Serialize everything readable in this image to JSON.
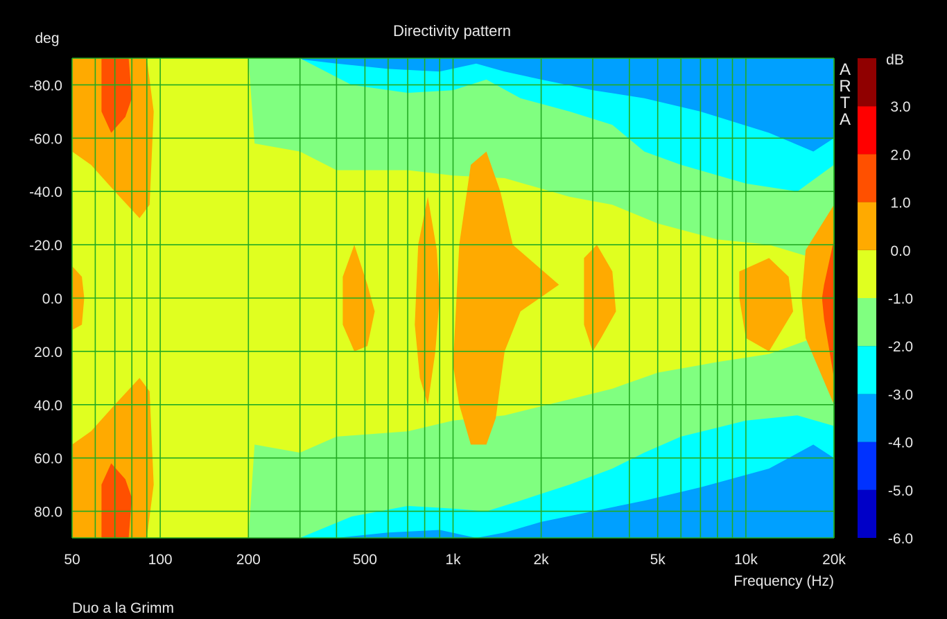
{
  "chart_data": {
    "type": "heatmap",
    "title": "Directivity pattern",
    "xlabel": "Frequency (Hz)",
    "ylabel": "deg",
    "x_scale": "log",
    "xlim": [
      50,
      20000
    ],
    "ylim": [
      -90,
      90
    ],
    "x_ticks": [
      50,
      100,
      200,
      500,
      1000,
      2000,
      5000,
      10000,
      20000
    ],
    "x_tick_labels": [
      "50",
      "100",
      "200",
      "500",
      "1k",
      "2k",
      "5k",
      "10k",
      "20k"
    ],
    "y_ticks": [
      -80,
      -60,
      -40,
      -20,
      0,
      20,
      40,
      60,
      80
    ],
    "y_tick_labels": [
      "-80.0",
      "-60.0",
      "-40.0",
      "-20.0",
      "0.0",
      "20.0",
      "40.0",
      "60.0",
      "80.0"
    ],
    "grid": true,
    "colorbar": {
      "label": "dB",
      "levels": [
        -6,
        -5,
        -4,
        -3,
        -2,
        -1,
        0,
        1,
        2,
        3,
        4
      ],
      "tick_labels": [
        "-6.0",
        "-5.0",
        "-4.0",
        "-3.0",
        "-2.0",
        "-1.0",
        "0.0",
        "1.0",
        "2.0",
        "3.0"
      ],
      "colors": [
        "#0000c8",
        "#0032ff",
        "#00a0ff",
        "#00ffff",
        "#80ff80",
        "#e0ff20",
        "#ffaa00",
        "#ff5000",
        "#ff0000",
        "#900000"
      ]
    },
    "plot_background_color": "#000080",
    "grid_color": "#22aa22",
    "brand_letters": [
      "A",
      "R",
      "T",
      "A"
    ],
    "footer": "Duo a la Grimm",
    "regions": [
      {
        "level": "-4.0 to -3.0",
        "points": [
          [
            50,
            90
          ],
          [
            20000,
            90
          ],
          [
            20000,
            -90
          ],
          [
            50,
            -90
          ]
        ]
      },
      {
        "level": "-3.0 to -2.0",
        "points": [
          [
            200,
            -90
          ],
          [
            280,
            -90
          ],
          [
            400,
            -88
          ],
          [
            600,
            -86
          ],
          [
            900,
            -85
          ],
          [
            1200,
            -88
          ],
          [
            1500,
            -85
          ],
          [
            2000,
            -82
          ],
          [
            3000,
            -78
          ],
          [
            4500,
            -75
          ],
          [
            7000,
            -70
          ],
          [
            12000,
            -62
          ],
          [
            17000,
            -55
          ],
          [
            20000,
            -60
          ],
          [
            20000,
            60
          ],
          [
            17000,
            55
          ],
          [
            12000,
            64
          ],
          [
            7000,
            71
          ],
          [
            4500,
            76
          ],
          [
            3000,
            80
          ],
          [
            2000,
            84
          ],
          [
            1500,
            88
          ],
          [
            1200,
            90
          ],
          [
            900,
            87
          ],
          [
            600,
            88
          ],
          [
            400,
            90
          ],
          [
            280,
            90
          ],
          [
            200,
            90
          ],
          [
            200,
            -90
          ]
        ]
      },
      {
        "level": "-2.0 to -1.0",
        "points": [
          [
            200,
            -90
          ],
          [
            300,
            -90
          ],
          [
            450,
            -80
          ],
          [
            700,
            -77
          ],
          [
            1000,
            -78
          ],
          [
            1300,
            -82
          ],
          [
            1700,
            -75
          ],
          [
            2500,
            -70
          ],
          [
            3500,
            -65
          ],
          [
            4500,
            -55
          ],
          [
            6000,
            -50
          ],
          [
            10000,
            -43
          ],
          [
            15000,
            -40
          ],
          [
            20000,
            -50
          ],
          [
            20000,
            48
          ],
          [
            15000,
            44
          ],
          [
            10000,
            46
          ],
          [
            6000,
            52
          ],
          [
            4500,
            58
          ],
          [
            3500,
            64
          ],
          [
            2500,
            70
          ],
          [
            1700,
            76
          ],
          [
            1300,
            80
          ],
          [
            1000,
            79
          ],
          [
            700,
            78
          ],
          [
            450,
            82
          ],
          [
            300,
            90
          ],
          [
            200,
            90
          ],
          [
            200,
            -90
          ]
        ]
      },
      {
        "level": "-1.0 to 0.0",
        "points": [
          [
            50,
            -90
          ],
          [
            100,
            -90
          ],
          [
            200,
            -90
          ],
          [
            210,
            -58
          ],
          [
            300,
            -55
          ],
          [
            400,
            -48
          ],
          [
            700,
            -48
          ],
          [
            1000,
            -46
          ],
          [
            1500,
            -45
          ],
          [
            2500,
            -38
          ],
          [
            3500,
            -35
          ],
          [
            5000,
            -28
          ],
          [
            8000,
            -22
          ],
          [
            12000,
            -20
          ],
          [
            17000,
            -15
          ],
          [
            20000,
            -20
          ],
          [
            20000,
            22
          ],
          [
            17000,
            15
          ],
          [
            12000,
            21
          ],
          [
            8000,
            24
          ],
          [
            5000,
            28
          ],
          [
            3500,
            34
          ],
          [
            2500,
            38
          ],
          [
            1500,
            44
          ],
          [
            1000,
            46
          ],
          [
            700,
            50
          ],
          [
            400,
            52
          ],
          [
            300,
            58
          ],
          [
            210,
            55
          ],
          [
            200,
            90
          ],
          [
            100,
            90
          ],
          [
            50,
            90
          ],
          [
            50,
            -90
          ]
        ]
      },
      {
        "level": "0.0 to 1.0",
        "points": [
          [
            50,
            -90
          ],
          [
            90,
            -90
          ],
          [
            95,
            -70
          ],
          [
            92,
            -35
          ],
          [
            85,
            -30
          ],
          [
            70,
            -40
          ],
          [
            58,
            -50
          ],
          [
            50,
            -55
          ],
          [
            50,
            -90
          ]
        ]
      },
      {
        "level": "0.0 to 1.0",
        "points": [
          [
            50,
            90
          ],
          [
            90,
            90
          ],
          [
            95,
            70
          ],
          [
            92,
            35
          ],
          [
            85,
            30
          ],
          [
            70,
            40
          ],
          [
            58,
            50
          ],
          [
            50,
            55
          ],
          [
            50,
            90
          ]
        ]
      },
      {
        "level": "0.0 to 1.0",
        "points": [
          [
            50,
            -12
          ],
          [
            54,
            -8
          ],
          [
            55,
            0
          ],
          [
            54,
            10
          ],
          [
            50,
            12
          ],
          [
            50,
            -12
          ]
        ]
      },
      {
        "level": "0.0 to 1.0",
        "points": [
          [
            420,
            -8
          ],
          [
            460,
            -20
          ],
          [
            510,
            -5
          ],
          [
            540,
            5
          ],
          [
            510,
            18
          ],
          [
            460,
            20
          ],
          [
            420,
            10
          ],
          [
            420,
            -8
          ]
        ]
      },
      {
        "level": "0.0 to 1.0",
        "points": [
          [
            760,
            -20
          ],
          [
            820,
            -38
          ],
          [
            880,
            -18
          ],
          [
            900,
            0
          ],
          [
            870,
            20
          ],
          [
            820,
            40
          ],
          [
            770,
            30
          ],
          [
            740,
            10
          ],
          [
            760,
            -20
          ]
        ]
      },
      {
        "level": "0.0 to 1.0",
        "points": [
          [
            1050,
            -20
          ],
          [
            1150,
            -50
          ],
          [
            1300,
            -55
          ],
          [
            1450,
            -40
          ],
          [
            1600,
            -20
          ],
          [
            2300,
            -5
          ],
          [
            1700,
            5
          ],
          [
            1500,
            20
          ],
          [
            1400,
            45
          ],
          [
            1300,
            55
          ],
          [
            1150,
            55
          ],
          [
            1050,
            40
          ],
          [
            1000,
            25
          ],
          [
            1050,
            -20
          ]
        ]
      },
      {
        "level": "0.0 to 1.0",
        "points": [
          [
            2800,
            -15
          ],
          [
            3100,
            -20
          ],
          [
            3500,
            -10
          ],
          [
            3600,
            5
          ],
          [
            3200,
            15
          ],
          [
            3000,
            20
          ],
          [
            2800,
            10
          ],
          [
            2800,
            -15
          ]
        ]
      },
      {
        "level": "0.0 to 1.0",
        "points": [
          [
            9500,
            -10
          ],
          [
            12000,
            -15
          ],
          [
            14000,
            -8
          ],
          [
            14500,
            5
          ],
          [
            12000,
            20
          ],
          [
            10000,
            15
          ],
          [
            9500,
            0
          ],
          [
            9500,
            -10
          ]
        ]
      },
      {
        "level": "0.0 to 1.0",
        "points": [
          [
            16000,
            -18
          ],
          [
            20000,
            -35
          ],
          [
            20000,
            40
          ],
          [
            16000,
            15
          ],
          [
            15500,
            0
          ],
          [
            16000,
            -18
          ]
        ]
      },
      {
        "level": "1.0 to 2.0",
        "points": [
          [
            63,
            -90
          ],
          [
            78,
            -90
          ],
          [
            80,
            -75
          ],
          [
            76,
            -68
          ],
          [
            68,
            -62
          ],
          [
            63,
            -70
          ],
          [
            63,
            -90
          ]
        ]
      },
      {
        "level": "1.0 to 2.0",
        "points": [
          [
            63,
            90
          ],
          [
            78,
            90
          ],
          [
            80,
            75
          ],
          [
            76,
            68
          ],
          [
            68,
            62
          ],
          [
            63,
            70
          ],
          [
            63,
            90
          ]
        ]
      },
      {
        "level": "1.0 to 2.0",
        "points": [
          [
            18500,
            -5
          ],
          [
            20000,
            -22
          ],
          [
            20000,
            30
          ],
          [
            18500,
            8
          ],
          [
            18200,
            0
          ],
          [
            18500,
            -5
          ]
        ]
      }
    ]
  }
}
